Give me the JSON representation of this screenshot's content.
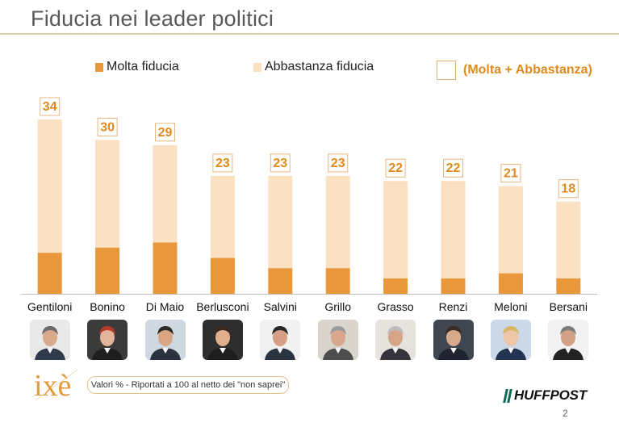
{
  "title": "Fiducia nei leader politici",
  "legend": {
    "molta": "Molta fiducia",
    "abbastanza": "Abbastanza fiducia",
    "total": "(Molta + Abbastanza)"
  },
  "colors": {
    "molta": "#e8973a",
    "abbastanza": "#fbe0c2",
    "label_text": "#e08a1e",
    "label_border": "#e6b77f",
    "rule": "#d9cfa4"
  },
  "chart_data": {
    "type": "bar",
    "stacked": true,
    "categories": [
      "Gentiloni",
      "Bonino",
      "Di Maio",
      "Berlusconi",
      "Salvini",
      "Grillo",
      "Grasso",
      "Renzi",
      "Meloni",
      "Bersani"
    ],
    "series": [
      {
        "name": "Molta fiducia",
        "values": [
          8,
          9,
          10,
          7,
          5,
          5,
          3,
          3,
          4,
          3
        ]
      },
      {
        "name": "Abbastanza fiducia",
        "values": [
          26,
          21,
          19,
          16,
          18,
          18,
          19,
          19,
          17,
          15
        ]
      }
    ],
    "totals": [
      34,
      30,
      29,
      23,
      23,
      23,
      22,
      22,
      21,
      18
    ],
    "total_series_name": "(Molta + Abbastanza)",
    "ylim": [
      0,
      34
    ],
    "grid": false,
    "legend_position": "top"
  },
  "photos": [
    {
      "leader": "Gentiloni",
      "icon": "portrait-gentiloni-icon"
    },
    {
      "leader": "Bonino",
      "icon": "portrait-bonino-icon"
    },
    {
      "leader": "Di Maio",
      "icon": "portrait-di-maio-icon"
    },
    {
      "leader": "Berlusconi",
      "icon": "portrait-berlusconi-icon"
    },
    {
      "leader": "Salvini",
      "icon": "portrait-salvini-icon"
    },
    {
      "leader": "Grillo",
      "icon": "portrait-grillo-icon"
    },
    {
      "leader": "Grasso",
      "icon": "portrait-grasso-icon"
    },
    {
      "leader": "Renzi",
      "icon": "portrait-renzi-icon"
    },
    {
      "leader": "Meloni",
      "icon": "portrait-meloni-icon"
    },
    {
      "leader": "Bersani",
      "icon": "portrait-bersani-icon"
    }
  ],
  "footer": {
    "logo_ixe": "ixè",
    "note": "Valori % - Riportati a 100 al netto dei \"non saprei\"",
    "logo_huffpost": "HUFFPOST",
    "page_number": "2"
  }
}
